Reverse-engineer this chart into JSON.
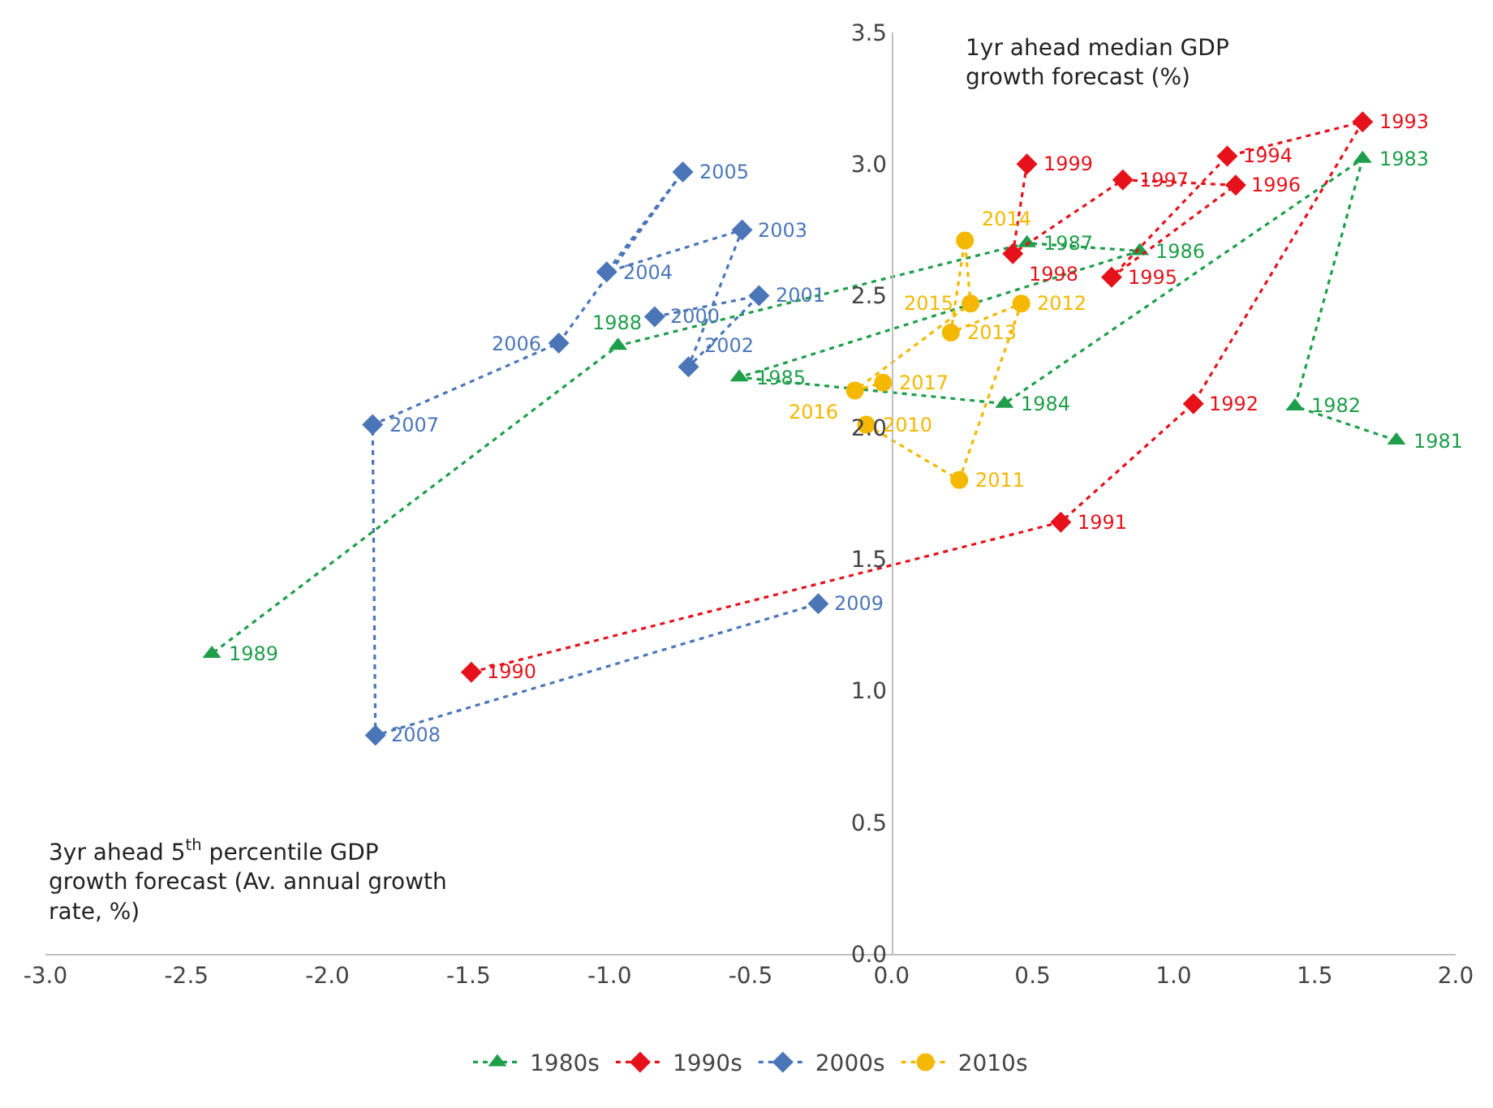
{
  "chart_data": {
    "type": "line",
    "xlabel": "3yr ahead 5$^{th}$ percentile GDP growth forecast (Av. annual growth rate, %)",
    "ylabel": "1yr ahead median GDP growth forecast (%)",
    "xlim": [
      -3,
      2
    ],
    "xticks": [
      {
        "value": -3,
        "label": "-3.0"
      },
      {
        "value": -2.5,
        "label": "-2.5"
      },
      {
        "value": -2,
        "label": "-2.0"
      },
      {
        "value": -1.5,
        "label": "-1.5"
      },
      {
        "value": -1,
        "label": "-1.0"
      },
      {
        "value": -0.5,
        "label": "-0.5"
      },
      {
        "value": 0,
        "label": "0.0"
      },
      {
        "value": 0.5,
        "label": "0.5"
      },
      {
        "value": 1,
        "label": "1.0"
      },
      {
        "value": 1.5,
        "label": "1.5"
      },
      {
        "value": 2,
        "label": "2.0"
      }
    ],
    "ylim": [
      0,
      3.5
    ],
    "yticks": [
      {
        "value": 0,
        "label": "0.0"
      },
      {
        "value": 0.5,
        "label": "0.5"
      },
      {
        "value": 1,
        "label": "1.0"
      },
      {
        "value": 1.5,
        "label": "1.5"
      },
      {
        "value": 2,
        "label": "2.0"
      },
      {
        "value": 2.5,
        "label": "2.5"
      },
      {
        "value": 3,
        "label": "3.0"
      },
      {
        "value": 3.5,
        "label": "3.5"
      }
    ],
    "legend": "bottom",
    "line_style": "dotted",
    "series": [
      {
        "name": "1980s",
        "color": "#1e9e4a",
        "marker": "triangle",
        "x": [
          1.79,
          1.43,
          1.67,
          0.4,
          -0.54,
          0.88,
          0.48,
          -0.97,
          -2.41
        ],
        "values": [
          1.95,
          2.08,
          3.02,
          2.09,
          2.19,
          2.67,
          2.7,
          2.31,
          1.14
        ]
      },
      {
        "name": "1990s",
        "color": "#e5121b",
        "marker": "diamond",
        "x": [
          -1.49,
          0.6,
          1.07,
          1.67,
          1.19,
          0.78,
          1.22,
          0.82,
          0.43,
          0.48
        ],
        "values": [
          1.07,
          1.64,
          2.09,
          3.16,
          3.03,
          2.57,
          2.92,
          2.94,
          2.66,
          3.0
        ]
      },
      {
        "name": "2000s",
        "color": "#4a76b8",
        "marker": "diamond",
        "x": [
          -0.84,
          -0.47,
          -0.72,
          -0.53,
          -1.01,
          -0.74,
          -1.18,
          -1.84,
          -1.83,
          -0.26
        ],
        "values": [
          2.42,
          2.5,
          2.23,
          2.75,
          2.59,
          2.97,
          2.32,
          2.01,
          0.83,
          1.33
        ]
      },
      {
        "name": "2010s",
        "color": "#f5b800",
        "marker": "circle",
        "x": [
          -0.09,
          0.24,
          0.46,
          0.21,
          0.26,
          0.28,
          -0.13,
          -0.03
        ],
        "values": [
          2.01,
          1.8,
          2.47,
          2.36,
          2.71,
          2.47,
          2.14,
          2.17
        ]
      }
    ],
    "annotations": [
      {
        "text": "1981",
        "x": 1.79,
        "y": 1.95
      },
      {
        "text": "1982",
        "x": 1.43,
        "y": 2.08
      },
      {
        "text": "1983",
        "x": 1.67,
        "y": 3.02
      },
      {
        "text": "1984",
        "x": 0.4,
        "y": 2.09
      },
      {
        "text": "1985",
        "x": -0.54,
        "y": 2.19
      },
      {
        "text": "1986",
        "x": 0.88,
        "y": 2.67
      },
      {
        "text": "1987",
        "x": 0.48,
        "y": 2.7
      },
      {
        "text": "1988",
        "x": -0.97,
        "y": 2.31
      },
      {
        "text": "1989",
        "x": -2.41,
        "y": 1.14
      },
      {
        "text": "1990",
        "x": -1.49,
        "y": 1.07
      },
      {
        "text": "1991",
        "x": 0.6,
        "y": 1.64
      },
      {
        "text": "1992",
        "x": 1.07,
        "y": 2.09
      },
      {
        "text": "1993",
        "x": 1.67,
        "y": 3.16
      },
      {
        "text": "1994",
        "x": 1.19,
        "y": 3.03
      },
      {
        "text": "1995",
        "x": 0.78,
        "y": 2.57
      },
      {
        "text": "1996",
        "x": 1.22,
        "y": 2.92
      },
      {
        "text": "1997",
        "x": 0.82,
        "y": 2.94
      },
      {
        "text": "1998",
        "x": 0.43,
        "y": 2.66
      },
      {
        "text": "1999",
        "x": 0.48,
        "y": 3.0
      },
      {
        "text": "2000",
        "x": -0.84,
        "y": 2.42
      },
      {
        "text": "2001",
        "x": -0.47,
        "y": 2.5
      },
      {
        "text": "2002",
        "x": -0.72,
        "y": 2.23
      },
      {
        "text": "2003",
        "x": -0.53,
        "y": 2.75
      },
      {
        "text": "2004",
        "x": -1.01,
        "y": 2.59
      },
      {
        "text": "2005",
        "x": -0.74,
        "y": 2.97
      },
      {
        "text": "2006",
        "x": -1.18,
        "y": 2.32
      },
      {
        "text": "2007",
        "x": -1.84,
        "y": 2.01
      },
      {
        "text": "2008",
        "x": -1.83,
        "y": 0.83
      },
      {
        "text": "2009",
        "x": -0.26,
        "y": 1.33
      },
      {
        "text": "2010",
        "x": -0.09,
        "y": 2.01
      },
      {
        "text": "2011",
        "x": 0.24,
        "y": 1.8
      },
      {
        "text": "2012",
        "x": 0.46,
        "y": 2.47
      },
      {
        "text": "2013",
        "x": 0.21,
        "y": 2.36
      },
      {
        "text": "2014",
        "x": 0.26,
        "y": 2.71
      },
      {
        "text": "2015",
        "x": 0.28,
        "y": 2.47
      },
      {
        "text": "2016",
        "x": -0.13,
        "y": 2.14
      },
      {
        "text": "2017",
        "x": -0.03,
        "y": 2.17
      }
    ]
  }
}
